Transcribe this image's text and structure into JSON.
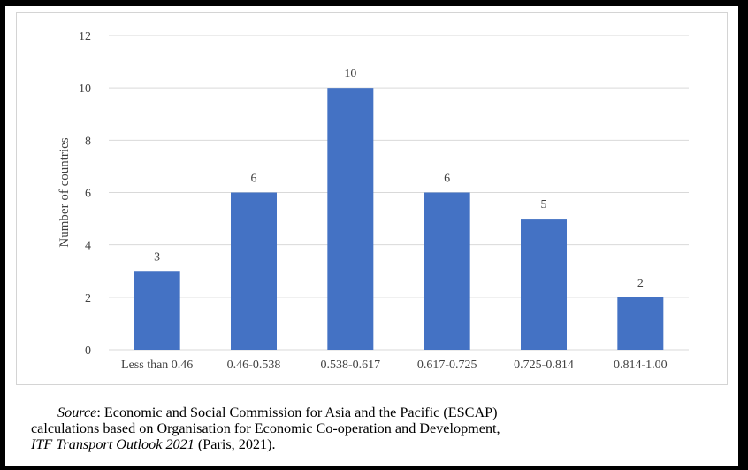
{
  "colors": {
    "bar": "#4472c4",
    "gridline": "#d9d9d9",
    "text": "#404040",
    "frame": "#000000"
  },
  "chart_data": {
    "type": "bar",
    "categories": [
      "Less than 0.46",
      "0.46-0.538",
      "0.538-0.617",
      "0.617-0.725",
      "0.725-0.814",
      "0.814-1.00"
    ],
    "values": [
      3,
      6,
      10,
      6,
      5,
      2
    ],
    "data_labels": [
      "3",
      "6",
      "10",
      "6",
      "5",
      "2"
    ],
    "ylabel": "Number of countries",
    "xlabel": "",
    "ylim": [
      0,
      12
    ],
    "yticks": [
      0,
      2,
      4,
      6,
      8,
      10,
      12
    ],
    "grid": true,
    "legend": "none"
  },
  "source": {
    "label": "Source",
    "line1_rest": ": Economic and Social Commission for Asia and the Pacific (ESCAP)",
    "line2": "calculations based on Organisation for Economic Co-operation and Development,",
    "line3_italic": "ITF Transport Outlook 2021",
    "line3_rest": " (Paris, 2021)."
  }
}
